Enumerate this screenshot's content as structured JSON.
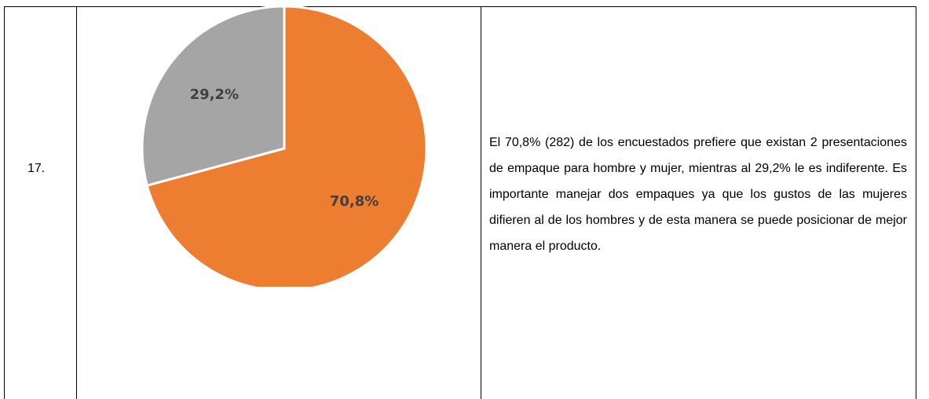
{
  "table": {
    "rows": [
      [
        "17.",
        null,
        "El 70,8% (282) de los encuestados prefiere que existan 2 presentaciones de empaque para hombre y mujer, mientras al 29,2% le es indiferente. Es importante manejar dos empaques ya que los gustos de las mujeres difieren al de los hombres y de esta manera se puede posicionar de mejor manera el producto."
      ]
    ]
  },
  "chart_data": {
    "type": "pie",
    "values": [
      70.8,
      29.2
    ],
    "value_labels": [
      "70,8%",
      "29,2%"
    ],
    "colors": [
      "#ed7d31",
      "#a5a5a5"
    ]
  }
}
